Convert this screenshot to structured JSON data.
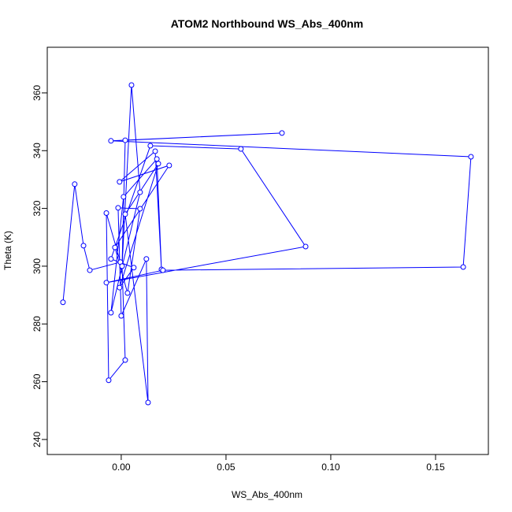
{
  "chart_data": {
    "type": "line",
    "title": "ATOM2 Northbound WS_Abs_400nm",
    "xlabel": "WS_Abs_400nm",
    "ylabel": "Theta (K)",
    "marker": "open-circle",
    "color": "#0000ff",
    "x": [
      -0.0278,
      -0.0222,
      -0.018,
      -0.015,
      -0.0004,
      -0.0071,
      -0.006,
      0.0019,
      0.0004,
      0.0049,
      0.009,
      -0.0049,
      0.0011,
      0.017,
      0.0192,
      0.0162,
      -0.0008,
      0.0229,
      -0.003,
      0.003,
      0.009,
      -0.0015,
      0.0,
      0.012,
      0.0128,
      0.0019,
      0.0177,
      -0.0008,
      0.006,
      -0.0049,
      0.0139,
      0.0571,
      0.088,
      -0.0071,
      0.0199,
      0.1632,
      0.1669,
      -0.0049,
      0.0767,
      0.0019,
      0.0004
    ],
    "values": [
      287.5,
      328.4,
      307.1,
      298.6,
      301.4,
      318.4,
      260.5,
      267.5,
      300,
      362.7,
      325.6,
      283.9,
      324,
      337.1,
      298.9,
      339.8,
      329.2,
      334.9,
      306.5,
      290.7,
      319.9,
      320.2,
      282.8,
      302.5,
      252.8,
      318,
      335.5,
      292.6,
      299.5,
      302.5,
      341.7,
      340.6,
      306.8,
      294.3,
      298.6,
      299.7,
      337.9,
      343.4,
      346.1,
      343.6,
      300
    ],
    "xlim": [
      -0.0353,
      0.1752
    ],
    "ylim": [
      234.8,
      375.8
    ],
    "xticks": [
      {
        "value": 0,
        "label": "0.00"
      },
      {
        "value": 0.05,
        "label": "0.05"
      },
      {
        "value": 0.1,
        "label": "0.10"
      },
      {
        "value": 0.15,
        "label": "0.15"
      }
    ],
    "yticks": [
      240,
      260,
      280,
      300,
      320,
      340,
      360
    ]
  }
}
